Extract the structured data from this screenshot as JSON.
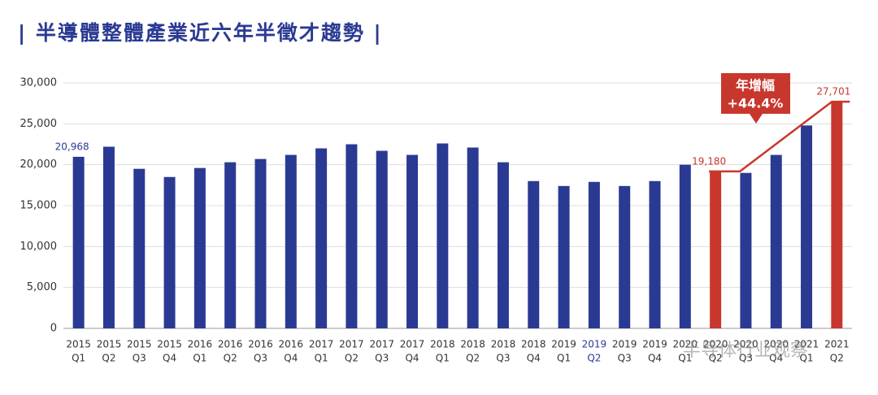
{
  "chart_data": {
    "type": "bar",
    "title": "| 半導體整體產業近六年半徵才趨勢 |",
    "categories": [
      [
        "2015",
        "Q1"
      ],
      [
        "2015",
        "Q2"
      ],
      [
        "2015",
        "Q3"
      ],
      [
        "2015",
        "Q4"
      ],
      [
        "2016",
        "Q1"
      ],
      [
        "2016",
        "Q2"
      ],
      [
        "2016",
        "Q3"
      ],
      [
        "2016",
        "Q4"
      ],
      [
        "2017",
        "Q1"
      ],
      [
        "2017",
        "Q2"
      ],
      [
        "2017",
        "Q3"
      ],
      [
        "2017",
        "Q4"
      ],
      [
        "2018",
        "Q1"
      ],
      [
        "2018",
        "Q2"
      ],
      [
        "2018",
        "Q3"
      ],
      [
        "2018",
        "Q4"
      ],
      [
        "2019",
        "Q1"
      ],
      [
        "2019",
        "Q2"
      ],
      [
        "2019",
        "Q3"
      ],
      [
        "2019",
        "Q4"
      ],
      [
        "2020",
        "Q1"
      ],
      [
        "2020",
        "Q2"
      ],
      [
        "2020",
        "Q3"
      ],
      [
        "2020",
        "Q4"
      ],
      [
        "2021",
        "Q1"
      ],
      [
        "2021",
        "Q2"
      ]
    ],
    "values": [
      20968,
      22200,
      19500,
      18500,
      19600,
      20300,
      20700,
      21200,
      22000,
      22500,
      21700,
      21200,
      22600,
      22100,
      20300,
      18000,
      17400,
      17900,
      17400,
      18000,
      20000,
      19180,
      19000,
      21200,
      24800,
      27701
    ],
    "value_labels": [
      "20,968",
      null,
      null,
      null,
      null,
      null,
      null,
      null,
      null,
      null,
      null,
      null,
      null,
      null,
      null,
      null,
      null,
      null,
      null,
      null,
      null,
      "19,180",
      null,
      null,
      null,
      "27,701"
    ],
    "colors": [
      "#2a3a93",
      "#2a3a93",
      "#2a3a93",
      "#2a3a93",
      "#2a3a93",
      "#2a3a93",
      "#2a3a93",
      "#2a3a93",
      "#2a3a93",
      "#2a3a93",
      "#2a3a93",
      "#2a3a93",
      "#2a3a93",
      "#2a3a93",
      "#2a3a93",
      "#2a3a93",
      "#2a3a93",
      "#2a3a93",
      "#2a3a93",
      "#2a3a93",
      "#2a3a93",
      "#c8372d",
      "#2a3a93",
      "#2a3a93",
      "#2a3a93",
      "#c8372d"
    ],
    "ylim": [
      0,
      30000
    ],
    "yticks": [
      0,
      {
        "value": 5000,
        "label": "5,000"
      },
      {
        "value": 10000,
        "label": "10,000"
      },
      {
        "value": 15000,
        "label": "15,000"
      },
      {
        "value": 20000,
        "label": "20,000"
      },
      {
        "value": 25000,
        "label": "25,000"
      },
      {
        "value": 30000,
        "label": "30,000"
      }
    ],
    "grid": true,
    "annotation": {
      "title": "年增幅",
      "value": "+44.4%"
    },
    "watermark": "半导体行业观察"
  }
}
